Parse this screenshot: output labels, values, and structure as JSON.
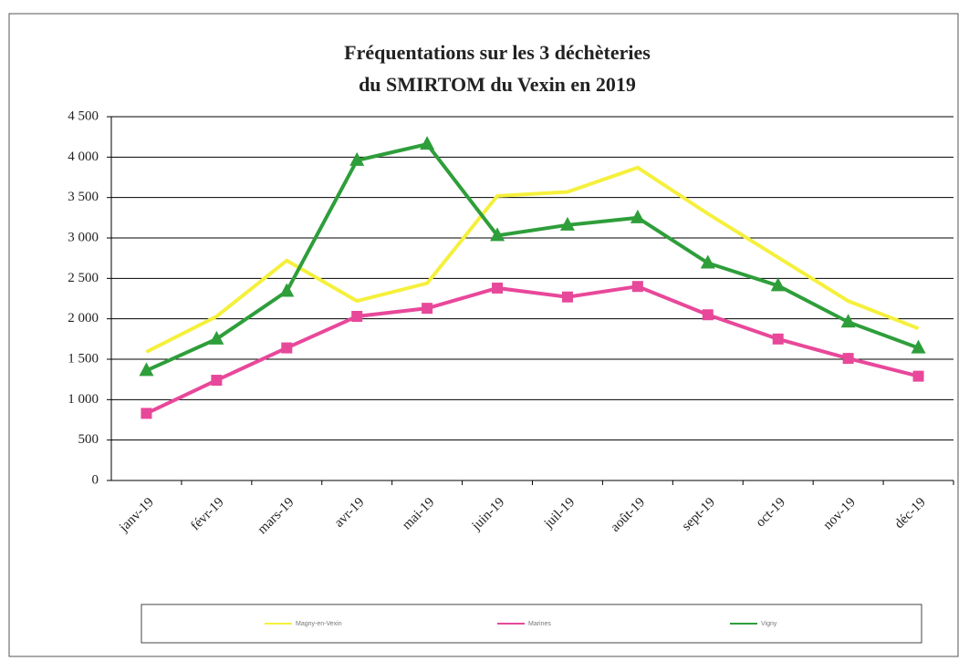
{
  "chart_data": {
    "type": "line",
    "title": [
      "Fréquentations sur les 3 déchèteries",
      "du SMIRTOM du Vexin en 2019"
    ],
    "categories": [
      "janv-19",
      "févr-19",
      "mars-19",
      "avr-19",
      "mai-19",
      "juin-19",
      "juil-19",
      "août-19",
      "sept-19",
      "oct-19",
      "nov-19",
      "déc-19"
    ],
    "series": [
      {
        "name": "Magny-en-Vexin",
        "color": "#f5f03c",
        "marker": "none",
        "values": [
          1590,
          2030,
          2720,
          2220,
          2440,
          3520,
          3570,
          3870,
          3300,
          2760,
          2220,
          1880
        ]
      },
      {
        "name": "Marines",
        "color": "#e8489a",
        "marker": "square",
        "values": [
          830,
          1240,
          1640,
          2030,
          2130,
          2380,
          2270,
          2400,
          2050,
          1750,
          1510,
          1290
        ]
      },
      {
        "name": "Vigny",
        "color": "#2e9e3a",
        "marker": "triangle",
        "values": [
          1360,
          1750,
          2340,
          3960,
          4160,
          3030,
          3160,
          3250,
          2690,
          2410,
          1960,
          1640
        ]
      }
    ],
    "ylim": [
      0,
      4500
    ],
    "yticks": [
      0,
      500,
      {
        "value": 1000,
        "label": "1 000"
      },
      {
        "value": 1500,
        "label": "1 500"
      },
      {
        "value": 2000,
        "label": "2 000"
      },
      {
        "value": 2500,
        "label": "2 500"
      },
      {
        "value": 3000,
        "label": "3 000"
      },
      {
        "value": 3500,
        "label": "3 500"
      },
      {
        "value": 4000,
        "label": "4 000"
      },
      {
        "value": 4500,
        "label": "4 500"
      }
    ],
    "grid": true,
    "legend": "bottom"
  }
}
